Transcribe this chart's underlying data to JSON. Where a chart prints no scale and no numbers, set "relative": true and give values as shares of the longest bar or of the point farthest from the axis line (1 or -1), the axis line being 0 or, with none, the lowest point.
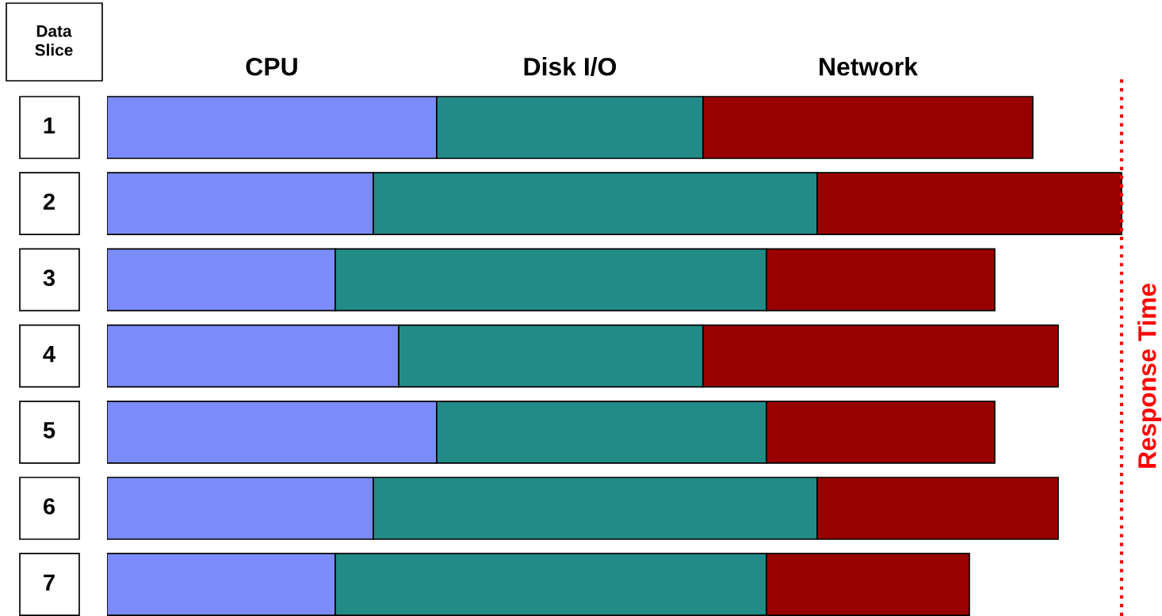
{
  "chart_data": {
    "type": "bar",
    "orientation": "horizontal",
    "stacked": true,
    "relative": true,
    "ylabel": "Data Slice",
    "categories": [
      "1",
      "2",
      "3",
      "4",
      "5",
      "6",
      "7"
    ],
    "legend": "top",
    "series": [
      {
        "name": "CPU",
        "color": "#7b8cfa",
        "values": [
          0.325,
          0.2625,
          0.225,
          0.2875,
          0.325,
          0.2625,
          0.225
        ]
      },
      {
        "name": "Disk I/O",
        "color": "#228b87",
        "values": [
          0.2625,
          0.4375,
          0.425,
          0.3,
          0.325,
          0.4375,
          0.425
        ]
      },
      {
        "name": "Network",
        "color": "#990000",
        "values": [
          0.325,
          0.3,
          0.225,
          0.35,
          0.225,
          0.2375,
          0.2
        ]
      }
    ],
    "ref_lines": [
      {
        "axis": "x",
        "value": 1,
        "label": "Response Time",
        "color": "#ff0000",
        "line_style": "dotted"
      }
    ]
  }
}
